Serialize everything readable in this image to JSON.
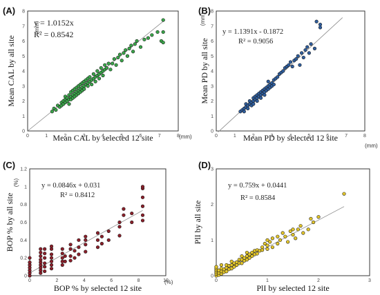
{
  "chart_data": [
    {
      "id": "A",
      "type": "scatter",
      "panel_label": "(A)",
      "xlabel": "Mean CAL by selected 12 site",
      "ylabel": "Mean CAL by  all site",
      "x_unit": "(mm)",
      "y_unit": "(mm)",
      "xlim": [
        0,
        8
      ],
      "ylim": [
        0,
        8
      ],
      "xticks": [
        0,
        1,
        2,
        3,
        4,
        5,
        6,
        7,
        8
      ],
      "yticks": [
        0,
        1,
        2,
        3,
        4,
        5,
        6,
        7,
        8
      ],
      "equation": "y = 1.0152x",
      "r2": "R² = 0.8542",
      "equation_style": "box",
      "fit": {
        "slope": 1.0152,
        "intercept": 0
      },
      "point_color": "#3aa64a",
      "points": [
        [
          1.3,
          1.3
        ],
        [
          1.4,
          1.5
        ],
        [
          1.5,
          1.4
        ],
        [
          1.6,
          1.7
        ],
        [
          1.7,
          1.6
        ],
        [
          1.8,
          1.9
        ],
        [
          1.8,
          1.7
        ],
        [
          1.9,
          2.0
        ],
        [
          1.9,
          1.8
        ],
        [
          2.0,
          2.1
        ],
        [
          2.0,
          1.9
        ],
        [
          2.0,
          2.3
        ],
        [
          2.1,
          2.0
        ],
        [
          2.1,
          2.2
        ],
        [
          2.2,
          2.1
        ],
        [
          2.2,
          2.4
        ],
        [
          2.2,
          1.8
        ],
        [
          2.3,
          2.3
        ],
        [
          2.3,
          2.6
        ],
        [
          2.3,
          2.1
        ],
        [
          2.4,
          2.4
        ],
        [
          2.4,
          2.7
        ],
        [
          2.4,
          2.2
        ],
        [
          2.5,
          2.5
        ],
        [
          2.5,
          2.3
        ],
        [
          2.5,
          2.8
        ],
        [
          2.6,
          2.6
        ],
        [
          2.6,
          2.4
        ],
        [
          2.6,
          2.9
        ],
        [
          2.7,
          2.7
        ],
        [
          2.7,
          2.5
        ],
        [
          2.7,
          3.0
        ],
        [
          2.8,
          2.8
        ],
        [
          2.8,
          2.6
        ],
        [
          2.8,
          3.1
        ],
        [
          2.9,
          2.9
        ],
        [
          2.9,
          3.2
        ],
        [
          2.9,
          2.7
        ],
        [
          3.0,
          3.0
        ],
        [
          3.0,
          3.3
        ],
        [
          3.0,
          2.8
        ],
        [
          3.1,
          3.1
        ],
        [
          3.1,
          3.4
        ],
        [
          3.2,
          3.2
        ],
        [
          3.2,
          3.5
        ],
        [
          3.2,
          3.0
        ],
        [
          3.3,
          3.3
        ],
        [
          3.3,
          3.6
        ],
        [
          3.4,
          3.4
        ],
        [
          3.4,
          3.1
        ],
        [
          3.5,
          3.5
        ],
        [
          3.5,
          3.8
        ],
        [
          3.6,
          3.6
        ],
        [
          3.6,
          3.3
        ],
        [
          3.7,
          3.7
        ],
        [
          3.7,
          4.0
        ],
        [
          3.8,
          3.8
        ],
        [
          3.8,
          3.5
        ],
        [
          3.9,
          3.9
        ],
        [
          3.9,
          4.2
        ],
        [
          4.0,
          4.0
        ],
        [
          4.0,
          3.7
        ],
        [
          4.1,
          4.1
        ],
        [
          4.1,
          4.4
        ],
        [
          4.2,
          4.2
        ],
        [
          4.3,
          4.5
        ],
        [
          4.4,
          4.1
        ],
        [
          4.5,
          4.5
        ],
        [
          4.6,
          4.8
        ],
        [
          4.7,
          4.4
        ],
        [
          4.8,
          4.9
        ],
        [
          4.9,
          5.1
        ],
        [
          5.0,
          4.7
        ],
        [
          5.1,
          5.2
        ],
        [
          5.2,
          5.4
        ],
        [
          5.3,
          5.0
        ],
        [
          5.4,
          5.5
        ],
        [
          5.5,
          5.7
        ],
        [
          5.6,
          5.3
        ],
        [
          5.7,
          5.8
        ],
        [
          5.8,
          6.0
        ],
        [
          6.0,
          5.6
        ],
        [
          6.2,
          6.1
        ],
        [
          6.4,
          6.2
        ],
        [
          6.6,
          6.4
        ],
        [
          6.9,
          6.6
        ],
        [
          7.1,
          6.0
        ],
        [
          7.2,
          6.6
        ],
        [
          7.2,
          5.9
        ],
        [
          7.2,
          7.4
        ]
      ]
    },
    {
      "id": "B",
      "type": "scatter",
      "panel_label": "(B)",
      "xlabel": "Mean PD by selected 12 site",
      "ylabel": "Mean PD by  all site",
      "x_unit": "(mm)",
      "y_unit": "(mm)",
      "xlim": [
        0,
        8
      ],
      "ylim": [
        0,
        8
      ],
      "xticks": [
        0,
        1,
        2,
        3,
        4,
        5,
        6,
        7,
        8
      ],
      "yticks": [
        0,
        1,
        2,
        3,
        4,
        5,
        6,
        7,
        8
      ],
      "equation": "y = 1.1391x - 0.1872",
      "r2": "R² = 0.9056",
      "equation_style": "plain",
      "fit": {
        "slope": 1.1391,
        "intercept": -0.1872
      },
      "point_color": "#2f5e9e",
      "points": [
        [
          1.3,
          1.3
        ],
        [
          1.4,
          1.4
        ],
        [
          1.5,
          1.5
        ],
        [
          1.5,
          1.3
        ],
        [
          1.6,
          1.6
        ],
        [
          1.6,
          1.8
        ],
        [
          1.7,
          1.7
        ],
        [
          1.7,
          1.5
        ],
        [
          1.8,
          1.8
        ],
        [
          1.8,
          2.0
        ],
        [
          1.9,
          1.9
        ],
        [
          1.9,
          1.7
        ],
        [
          2.0,
          2.0
        ],
        [
          2.0,
          2.2
        ],
        [
          2.0,
          1.8
        ],
        [
          2.1,
          2.1
        ],
        [
          2.1,
          2.3
        ],
        [
          2.2,
          2.2
        ],
        [
          2.2,
          2.4
        ],
        [
          2.2,
          2.0
        ],
        [
          2.3,
          2.3
        ],
        [
          2.3,
          2.5
        ],
        [
          2.4,
          2.4
        ],
        [
          2.4,
          2.6
        ],
        [
          2.4,
          2.2
        ],
        [
          2.5,
          2.5
        ],
        [
          2.5,
          2.7
        ],
        [
          2.6,
          2.6
        ],
        [
          2.6,
          2.8
        ],
        [
          2.6,
          2.4
        ],
        [
          2.7,
          2.7
        ],
        [
          2.7,
          2.9
        ],
        [
          2.8,
          2.8
        ],
        [
          2.8,
          3.0
        ],
        [
          2.8,
          3.3
        ],
        [
          2.9,
          2.9
        ],
        [
          2.9,
          3.1
        ],
        [
          3.0,
          3.0
        ],
        [
          3.0,
          3.2
        ],
        [
          3.1,
          3.4
        ],
        [
          3.1,
          3.1
        ],
        [
          3.2,
          3.5
        ],
        [
          3.3,
          3.6
        ],
        [
          3.4,
          3.8
        ],
        [
          3.5,
          3.9
        ],
        [
          3.6,
          4.0
        ],
        [
          3.7,
          4.2
        ],
        [
          3.8,
          4.3
        ],
        [
          3.9,
          4.4
        ],
        [
          4.0,
          4.6
        ],
        [
          4.1,
          4.3
        ],
        [
          4.2,
          4.7
        ],
        [
          4.3,
          4.8
        ],
        [
          4.4,
          5.0
        ],
        [
          4.5,
          4.4
        ],
        [
          4.6,
          5.2
        ],
        [
          4.7,
          4.9
        ],
        [
          4.8,
          5.4
        ],
        [
          4.9,
          5.6
        ],
        [
          5.0,
          5.2
        ],
        [
          5.1,
          5.8
        ],
        [
          5.3,
          5.5
        ],
        [
          5.4,
          7.3
        ],
        [
          5.6,
          6.9
        ],
        [
          5.6,
          7.1
        ]
      ]
    },
    {
      "id": "C",
      "type": "scatter",
      "panel_label": "(C)",
      "xlabel": "BOP % by selected 12 site",
      "ylabel": "BOP % by  all site",
      "x_unit": "(%)",
      "y_unit": "(%)",
      "xlim": [
        0,
        10
      ],
      "ylim": [
        0,
        1.2
      ],
      "xticks": [
        0,
        2,
        4,
        6,
        8,
        10
      ],
      "yticks": [
        0,
        0.2,
        0.4,
        0.6,
        0.8,
        1,
        1.2
      ],
      "equation": "y = 0.0846x + 0.031",
      "r2": "R² = 0.8412",
      "equation_style": "plain",
      "fit": {
        "slope": 0.0846,
        "intercept": 0.031
      },
      "point_color": "#8b1f2a",
      "points": [
        [
          0,
          0.0
        ],
        [
          0,
          0.03
        ],
        [
          0,
          0.06
        ],
        [
          0,
          0.09
        ],
        [
          0,
          0.12
        ],
        [
          0,
          0.15
        ],
        [
          0,
          0.2
        ],
        [
          0.8,
          0.03
        ],
        [
          0.8,
          0.06
        ],
        [
          0.8,
          0.09
        ],
        [
          0.8,
          0.12
        ],
        [
          0.8,
          0.15
        ],
        [
          0.8,
          0.18
        ],
        [
          0.8,
          0.22
        ],
        [
          0.8,
          0.26
        ],
        [
          0.8,
          0.3
        ],
        [
          1.1,
          0.05
        ],
        [
          1.1,
          0.1
        ],
        [
          1.1,
          0.14
        ],
        [
          1.1,
          0.2
        ],
        [
          1.1,
          0.25
        ],
        [
          1.1,
          0.3
        ],
        [
          1.6,
          0.08
        ],
        [
          1.6,
          0.12
        ],
        [
          1.6,
          0.16
        ],
        [
          1.6,
          0.2
        ],
        [
          1.6,
          0.24
        ],
        [
          1.6,
          0.3
        ],
        [
          1.6,
          0.33
        ],
        [
          2.4,
          0.12
        ],
        [
          2.4,
          0.16
        ],
        [
          2.4,
          0.2
        ],
        [
          2.4,
          0.25
        ],
        [
          2.4,
          0.3
        ],
        [
          2.6,
          0.16
        ],
        [
          2.6,
          0.22
        ],
        [
          3.0,
          0.17
        ],
        [
          3.0,
          0.22
        ],
        [
          3.0,
          0.3
        ],
        [
          3.0,
          0.35
        ],
        [
          3.3,
          0.2
        ],
        [
          3.3,
          0.28
        ],
        [
          3.6,
          0.24
        ],
        [
          3.6,
          0.32
        ],
        [
          3.6,
          0.4
        ],
        [
          4.1,
          0.27
        ],
        [
          4.1,
          0.35
        ],
        [
          4.1,
          0.4
        ],
        [
          4.1,
          0.44
        ],
        [
          5.0,
          0.32
        ],
        [
          5.0,
          0.4
        ],
        [
          5.0,
          0.48
        ],
        [
          5.3,
          0.36
        ],
        [
          5.3,
          0.44
        ],
        [
          5.8,
          0.4
        ],
        [
          5.8,
          0.5
        ],
        [
          6.6,
          0.45
        ],
        [
          6.6,
          0.55
        ],
        [
          6.6,
          0.6
        ],
        [
          6.9,
          0.68
        ],
        [
          6.9,
          0.75
        ],
        [
          7.5,
          0.6
        ],
        [
          7.5,
          0.7
        ],
        [
          8.3,
          0.62
        ],
        [
          8.3,
          0.68
        ],
        [
          8.3,
          0.78
        ],
        [
          8.3,
          0.88
        ],
        [
          8.3,
          0.98
        ],
        [
          8.3,
          1.0
        ]
      ]
    },
    {
      "id": "D",
      "type": "scatter",
      "panel_label": "(D)",
      "xlabel": "PlI by selected 12 site",
      "ylabel": "PlI by  all site",
      "x_unit": "",
      "y_unit": "",
      "xlim": [
        0,
        3
      ],
      "ylim": [
        0,
        3
      ],
      "xticks": [
        0,
        1,
        2,
        3
      ],
      "yticks": [
        0,
        1,
        2,
        3
      ],
      "equation": "y = 0.759x + 0.0441",
      "r2": "R² = 0.8584",
      "equation_style": "plain",
      "fit": {
        "slope": 0.759,
        "intercept": 0.0441
      },
      "point_color": "#e3c62b",
      "points": [
        [
          0,
          0.0
        ],
        [
          0,
          0.05
        ],
        [
          0,
          0.1
        ],
        [
          0,
          0.15
        ],
        [
          0,
          0.2
        ],
        [
          0,
          0.25
        ],
        [
          0.05,
          0.02
        ],
        [
          0.05,
          0.08
        ],
        [
          0.05,
          0.15
        ],
        [
          0.1,
          0.05
        ],
        [
          0.1,
          0.12
        ],
        [
          0.1,
          0.2
        ],
        [
          0.1,
          0.3
        ],
        [
          0.15,
          0.1
        ],
        [
          0.15,
          0.18
        ],
        [
          0.2,
          0.12
        ],
        [
          0.2,
          0.22
        ],
        [
          0.2,
          0.3
        ],
        [
          0.25,
          0.18
        ],
        [
          0.25,
          0.28
        ],
        [
          0.3,
          0.2
        ],
        [
          0.3,
          0.3
        ],
        [
          0.3,
          0.4
        ],
        [
          0.35,
          0.25
        ],
        [
          0.35,
          0.35
        ],
        [
          0.4,
          0.3
        ],
        [
          0.4,
          0.38
        ],
        [
          0.45,
          0.35
        ],
        [
          0.45,
          0.45
        ],
        [
          0.5,
          0.35
        ],
        [
          0.5,
          0.45
        ],
        [
          0.5,
          0.55
        ],
        [
          0.55,
          0.42
        ],
        [
          0.55,
          0.5
        ],
        [
          0.6,
          0.45
        ],
        [
          0.6,
          0.55
        ],
        [
          0.6,
          0.65
        ],
        [
          0.65,
          0.5
        ],
        [
          0.65,
          0.6
        ],
        [
          0.7,
          0.55
        ],
        [
          0.7,
          0.65
        ],
        [
          0.75,
          0.6
        ],
        [
          0.75,
          0.7
        ],
        [
          0.8,
          0.62
        ],
        [
          0.8,
          0.72
        ],
        [
          0.85,
          0.7
        ],
        [
          0.9,
          0.72
        ],
        [
          0.9,
          0.8
        ],
        [
          0.95,
          0.9
        ],
        [
          1.0,
          0.75
        ],
        [
          1.0,
          0.85
        ],
        [
          1.0,
          1.0
        ],
        [
          1.05,
          0.95
        ],
        [
          1.1,
          0.8
        ],
        [
          1.1,
          1.05
        ],
        [
          1.2,
          0.9
        ],
        [
          1.2,
          1.1
        ],
        [
          1.25,
          1.0
        ],
        [
          1.3,
          1.2
        ],
        [
          1.35,
          1.1
        ],
        [
          1.4,
          0.95
        ],
        [
          1.45,
          1.25
        ],
        [
          1.5,
          1.3
        ],
        [
          1.5,
          1.15
        ],
        [
          1.55,
          1.05
        ],
        [
          1.6,
          1.3
        ],
        [
          1.65,
          1.4
        ],
        [
          1.7,
          1.2
        ],
        [
          1.8,
          1.3
        ],
        [
          1.85,
          1.6
        ],
        [
          1.9,
          1.5
        ],
        [
          2.0,
          1.65
        ],
        [
          2.5,
          2.3
        ]
      ]
    }
  ]
}
